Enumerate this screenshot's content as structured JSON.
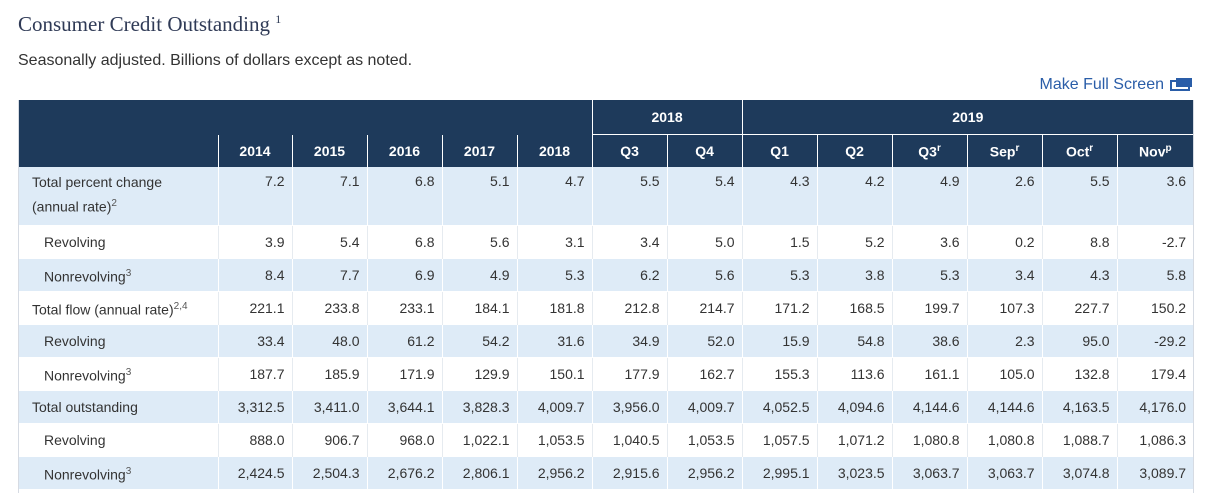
{
  "title": "Consumer Credit Outstanding",
  "title_note": "1",
  "subtitle": "Seasonally adjusted. Billions of dollars except as noted.",
  "full_screen_label": "Make Full Screen",
  "groups": [
    {
      "label": ""
    },
    {
      "label": "2018"
    },
    {
      "label": "2019"
    }
  ],
  "columns": [
    {
      "label": "2014",
      "sup": ""
    },
    {
      "label": "2015",
      "sup": ""
    },
    {
      "label": "2016",
      "sup": ""
    },
    {
      "label": "2017",
      "sup": ""
    },
    {
      "label": "2018",
      "sup": ""
    },
    {
      "label": "Q3",
      "sup": ""
    },
    {
      "label": "Q4",
      "sup": ""
    },
    {
      "label": "Q1",
      "sup": ""
    },
    {
      "label": "Q2",
      "sup": ""
    },
    {
      "label": "Q3",
      "sup": "r"
    },
    {
      "label": "Sep",
      "sup": "r"
    },
    {
      "label": "Oct",
      "sup": "r"
    },
    {
      "label": "Nov",
      "sup": "p"
    }
  ],
  "rows": [
    {
      "label": "Total percent change (annual rate)",
      "sup": "2",
      "indent": false,
      "values": [
        "7.2",
        "7.1",
        "6.8",
        "5.1",
        "4.7",
        "5.5",
        "5.4",
        "4.3",
        "4.2",
        "4.9",
        "2.6",
        "5.5",
        "3.6"
      ]
    },
    {
      "label": "Revolving",
      "sup": "",
      "indent": true,
      "values": [
        "3.9",
        "5.4",
        "6.8",
        "5.6",
        "3.1",
        "3.4",
        "5.0",
        "1.5",
        "5.2",
        "3.6",
        "0.2",
        "8.8",
        "-2.7"
      ]
    },
    {
      "label": "Nonrevolving",
      "sup": "3",
      "indent": true,
      "values": [
        "8.4",
        "7.7",
        "6.9",
        "4.9",
        "5.3",
        "6.2",
        "5.6",
        "5.3",
        "3.8",
        "5.3",
        "3.4",
        "4.3",
        "5.8"
      ]
    },
    {
      "label": "Total flow (annual rate)",
      "sup": "2,4",
      "indent": false,
      "values": [
        "221.1",
        "233.8",
        "233.1",
        "184.1",
        "181.8",
        "212.8",
        "214.7",
        "171.2",
        "168.5",
        "199.7",
        "107.3",
        "227.7",
        "150.2"
      ]
    },
    {
      "label": "Revolving",
      "sup": "",
      "indent": true,
      "values": [
        "33.4",
        "48.0",
        "61.2",
        "54.2",
        "31.6",
        "34.9",
        "52.0",
        "15.9",
        "54.8",
        "38.6",
        "2.3",
        "95.0",
        "-29.2"
      ]
    },
    {
      "label": "Nonrevolving",
      "sup": "3",
      "indent": true,
      "values": [
        "187.7",
        "185.9",
        "171.9",
        "129.9",
        "150.1",
        "177.9",
        "162.7",
        "155.3",
        "113.6",
        "161.1",
        "105.0",
        "132.8",
        "179.4"
      ]
    },
    {
      "label": "Total outstanding",
      "sup": "",
      "indent": false,
      "values": [
        "3,312.5",
        "3,411.0",
        "3,644.1",
        "3,828.3",
        "4,009.7",
        "3,956.0",
        "4,009.7",
        "4,052.5",
        "4,094.6",
        "4,144.6",
        "4,144.6",
        "4,163.5",
        "4,176.0"
      ]
    },
    {
      "label": "Revolving",
      "sup": "",
      "indent": true,
      "values": [
        "888.0",
        "906.7",
        "968.0",
        "1,022.1",
        "1,053.5",
        "1,040.5",
        "1,053.5",
        "1,057.5",
        "1,071.2",
        "1,080.8",
        "1,080.8",
        "1,088.7",
        "1,086.3"
      ]
    },
    {
      "label": "Nonrevolving",
      "sup": "3",
      "indent": true,
      "values": [
        "2,424.5",
        "2,504.3",
        "2,676.2",
        "2,806.1",
        "2,956.2",
        "2,915.6",
        "2,956.2",
        "2,995.1",
        "3,023.5",
        "3,063.7",
        "3,063.7",
        "3,074.8",
        "3,089.7"
      ]
    }
  ]
}
